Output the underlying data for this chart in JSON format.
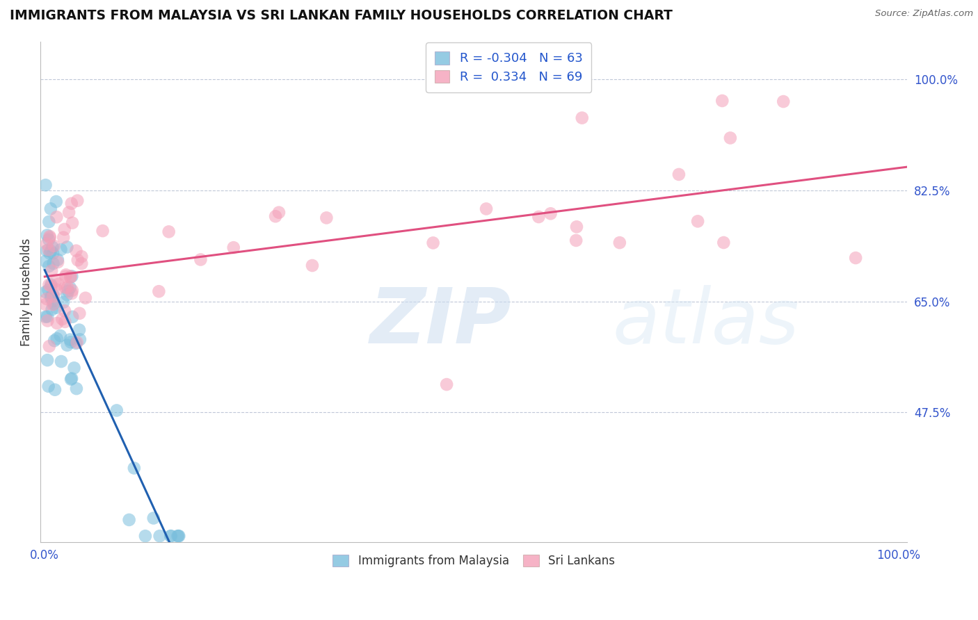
{
  "title": "IMMIGRANTS FROM MALAYSIA VS SRI LANKAN FAMILY HOUSEHOLDS CORRELATION CHART",
  "source": "Source: ZipAtlas.com",
  "ylabel": "Family Households",
  "blue_color": "#7bbfdd",
  "pink_color": "#f4a0b8",
  "blue_line_color": "#2060b0",
  "pink_line_color": "#e05080",
  "blue_r": -0.304,
  "pink_r": 0.334,
  "blue_n": 63,
  "pink_n": 69,
  "watermark_zip": "ZIP",
  "watermark_atlas": "atlas",
  "ytick_vals": [
    0.475,
    0.65,
    0.825,
    1.0
  ],
  "ytick_labels": [
    "47.5%",
    "65.0%",
    "82.5%",
    "100.0%"
  ],
  "xlim": [
    -0.005,
    1.01
  ],
  "ylim": [
    0.27,
    1.06
  ]
}
